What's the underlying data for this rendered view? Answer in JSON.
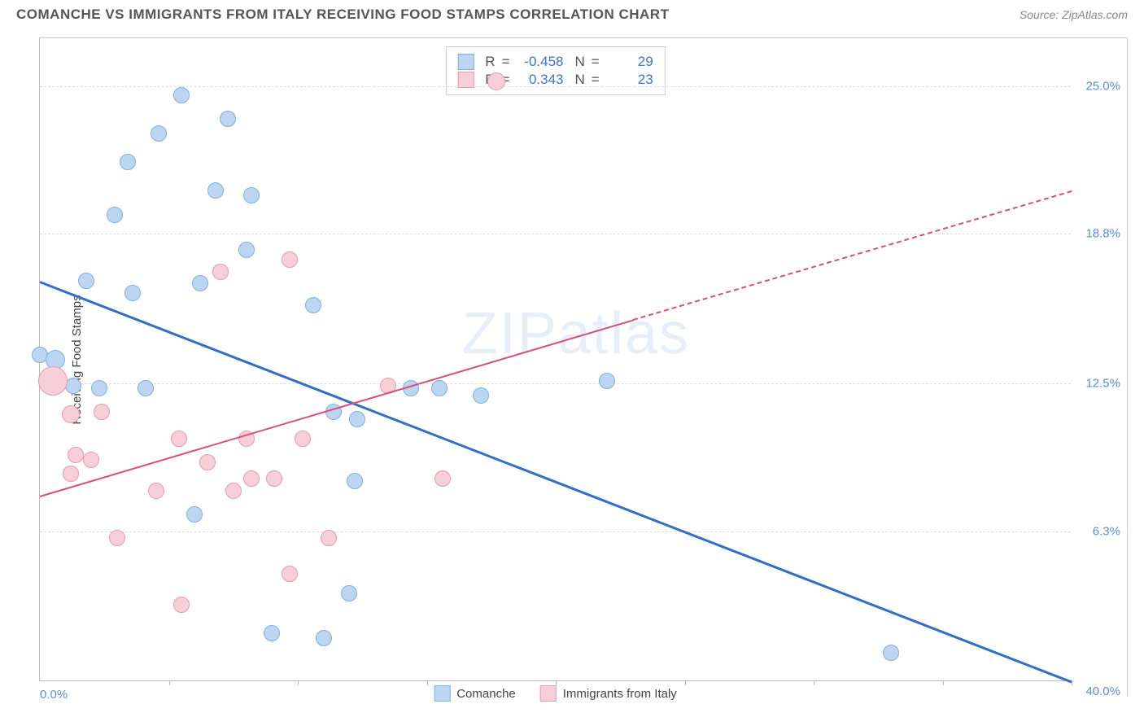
{
  "header": {
    "title": "COMANCHE VS IMMIGRANTS FROM ITALY RECEIVING FOOD STAMPS CORRELATION CHART",
    "source_prefix": "Source: ",
    "source_name": "ZipAtlas.com"
  },
  "watermark": {
    "zip": "ZIP",
    "atlas": "atlas"
  },
  "chart": {
    "type": "scatter",
    "y_axis_title": "Receiving Food Stamps",
    "xlim": [
      0,
      40
    ],
    "ylim": [
      0,
      27
    ],
    "x_start_label": "0.0%",
    "x_end_label": "40.0%",
    "x_tick_positions": [
      5,
      10,
      15,
      20,
      25,
      30,
      35,
      40
    ],
    "y_ticks": [
      {
        "v": 6.3,
        "label": "6.3%"
      },
      {
        "v": 12.5,
        "label": "12.5%"
      },
      {
        "v": 18.8,
        "label": "18.8%"
      },
      {
        "v": 25.0,
        "label": "25.0%"
      }
    ],
    "background_color": "#ffffff",
    "grid_color": "#dddddd",
    "axis_color": "#bbbbbb",
    "tick_label_color": "#5b8fd6",
    "series": [
      {
        "name": "Comanche",
        "fill": "#bcd6f2",
        "stroke": "#7fb0e3",
        "trend": {
          "x1": 0,
          "y1": 16.8,
          "x2": 40,
          "y2": 0.0,
          "color": "#2f6fc8",
          "width": 3,
          "dashed": false
        },
        "stats": {
          "R": "-0.458",
          "N": "29"
        },
        "point_radius_default": 10,
        "points": [
          {
            "x": 5.5,
            "y": 24.6
          },
          {
            "x": 7.3,
            "y": 23.6
          },
          {
            "x": 4.6,
            "y": 23.0
          },
          {
            "x": 3.4,
            "y": 21.8
          },
          {
            "x": 6.8,
            "y": 20.6
          },
          {
            "x": 8.2,
            "y": 20.4
          },
          {
            "x": 2.9,
            "y": 19.6
          },
          {
            "x": 8.0,
            "y": 18.1
          },
          {
            "x": 1.8,
            "y": 16.8
          },
          {
            "x": 6.2,
            "y": 16.7
          },
          {
            "x": 3.6,
            "y": 16.3
          },
          {
            "x": 10.6,
            "y": 15.8
          },
          {
            "x": 0.0,
            "y": 13.7
          },
          {
            "x": 0.6,
            "y": 13.5,
            "r": 12
          },
          {
            "x": 1.3,
            "y": 12.4
          },
          {
            "x": 2.3,
            "y": 12.3
          },
          {
            "x": 4.1,
            "y": 12.3
          },
          {
            "x": 14.4,
            "y": 12.3
          },
          {
            "x": 15.5,
            "y": 12.3
          },
          {
            "x": 17.1,
            "y": 12.0
          },
          {
            "x": 22.0,
            "y": 12.6
          },
          {
            "x": 11.4,
            "y": 11.3
          },
          {
            "x": 12.3,
            "y": 11.0
          },
          {
            "x": 6.0,
            "y": 7.0
          },
          {
            "x": 12.2,
            "y": 8.4
          },
          {
            "x": 9.0,
            "y": 2.0
          },
          {
            "x": 11.0,
            "y": 1.8
          },
          {
            "x": 12.0,
            "y": 3.7
          },
          {
            "x": 33.0,
            "y": 1.2
          }
        ]
      },
      {
        "name": "Immigrants from Italy",
        "fill": "#f6cfd8",
        "stroke": "#e69bb0",
        "trend": {
          "x1": 0,
          "y1": 7.8,
          "x2": 23,
          "y2": 15.2,
          "color": "#d94f78",
          "width": 2,
          "dashed": false
        },
        "trend_extrapolate": {
          "x1": 23,
          "y1": 15.2,
          "x2": 40,
          "y2": 20.6,
          "color": "#d94f78",
          "width": 2,
          "dashed": true
        },
        "stats": {
          "R": "0.343",
          "N": "23"
        },
        "point_radius_default": 10,
        "points": [
          {
            "x": 0.5,
            "y": 12.6,
            "r": 18
          },
          {
            "x": 7.0,
            "y": 17.2
          },
          {
            "x": 9.7,
            "y": 17.7
          },
          {
            "x": 17.7,
            "y": 25.2,
            "r": 11
          },
          {
            "x": 13.5,
            "y": 12.4
          },
          {
            "x": 1.2,
            "y": 11.2,
            "r": 11
          },
          {
            "x": 2.4,
            "y": 11.3
          },
          {
            "x": 5.4,
            "y": 10.2
          },
          {
            "x": 8.0,
            "y": 10.2
          },
          {
            "x": 10.2,
            "y": 10.2
          },
          {
            "x": 1.4,
            "y": 9.5
          },
          {
            "x": 2.0,
            "y": 9.3
          },
          {
            "x": 6.5,
            "y": 9.2
          },
          {
            "x": 1.2,
            "y": 8.7
          },
          {
            "x": 8.2,
            "y": 8.5
          },
          {
            "x": 9.1,
            "y": 8.5
          },
          {
            "x": 15.6,
            "y": 8.5
          },
          {
            "x": 4.5,
            "y": 8.0
          },
          {
            "x": 7.5,
            "y": 8.0
          },
          {
            "x": 3.0,
            "y": 6.0
          },
          {
            "x": 11.2,
            "y": 6.0
          },
          {
            "x": 9.7,
            "y": 4.5
          },
          {
            "x": 5.5,
            "y": 3.2
          }
        ]
      }
    ],
    "legend": {
      "items": [
        {
          "label": "Comanche",
          "fill": "#bcd6f2",
          "stroke": "#7fb0e3"
        },
        {
          "label": "Immigrants from Italy",
          "fill": "#f6cfd8",
          "stroke": "#e69bb0"
        }
      ]
    },
    "stats_box": {
      "R_label": "R",
      "N_label": "N",
      "eq": "="
    }
  }
}
